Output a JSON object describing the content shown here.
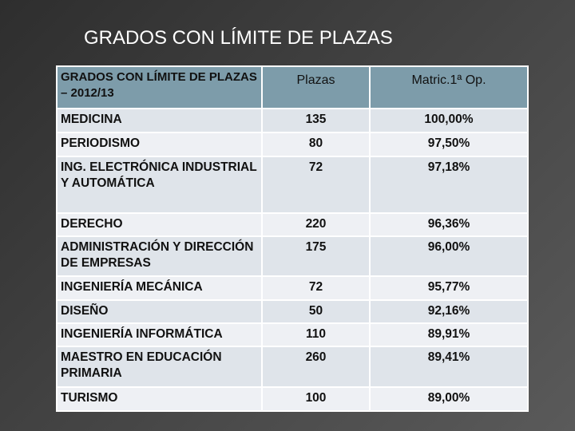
{
  "header": {
    "title": "GRADOS CON LÍMITE DE PLAZAS"
  },
  "table": {
    "columns": [
      "GRADOS CON LÍMITE DE PLAZAS – 2012/13",
      "Plazas",
      "Matric.1ª Op."
    ],
    "rows": [
      [
        "MEDICINA",
        135,
        "100,00%"
      ],
      [
        "PERIODISMO",
        80,
        "97,50%"
      ],
      [
        "ING. ELECTRÓNICA INDUSTRIAL Y AUTOMÁTICA",
        72,
        "97,18%"
      ],
      [
        "DERECHO",
        220,
        "96,36%"
      ],
      [
        "ADMINISTRACIÓN Y DIRECCIÓN DE EMPRESAS",
        175,
        "96,00%"
      ],
      [
        "INGENIERÍA MECÁNICA",
        72,
        "95,77%"
      ],
      [
        "DISEÑO",
        50,
        "92,16%"
      ],
      [
        "INGENIERÍA INFORMÁTICA",
        110,
        "89,91%"
      ],
      [
        "MAESTRO EN EDUCACIÓN PRIMARIA",
        260,
        "89,41%"
      ],
      [
        "TURISMO",
        100,
        "89,00%"
      ]
    ]
  }
}
